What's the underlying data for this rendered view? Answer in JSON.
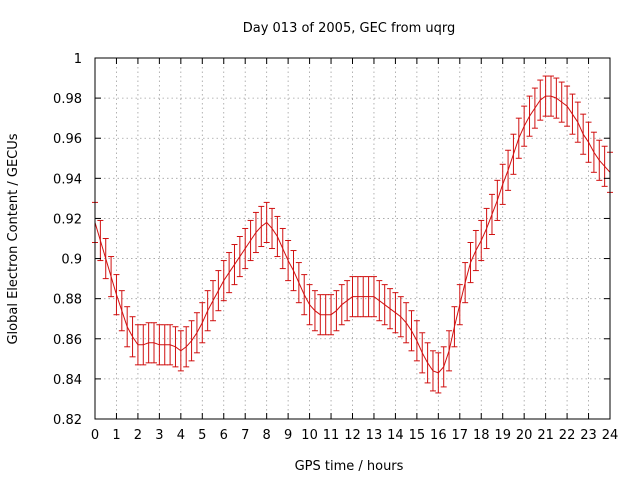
{
  "chart_data": {
    "type": "line",
    "title": "Day 013 of 2005, GEC from uqrg",
    "xlabel": "GPS time / hours",
    "ylabel": "Global Electron Content / GECUs",
    "xlim": [
      0,
      24
    ],
    "ylim": [
      0.82,
      1.0
    ],
    "grid": true,
    "x_ticks": [
      "0",
      "1",
      "2",
      "3",
      "4",
      "5",
      "6",
      "7",
      "8",
      "9",
      "10",
      "11",
      "12",
      "13",
      "14",
      "15",
      "16",
      "17",
      "18",
      "19",
      "20",
      "21",
      "22",
      "23",
      "24"
    ],
    "y_ticks": [
      "0.82",
      "0.84",
      "0.86",
      "0.88",
      "0.9",
      "0.92",
      "0.94",
      "0.96",
      "0.98",
      "1"
    ],
    "series": [
      {
        "color": "#d01010",
        "x": [
          0.0,
          0.25,
          0.5,
          0.75,
          1.0,
          1.25,
          1.5,
          1.75,
          2.0,
          2.25,
          2.5,
          2.75,
          3.0,
          3.25,
          3.5,
          3.75,
          4.0,
          4.25,
          4.5,
          4.75,
          5.0,
          5.25,
          5.5,
          5.75,
          6.0,
          6.25,
          6.5,
          6.75,
          7.0,
          7.25,
          7.5,
          7.75,
          8.0,
          8.25,
          8.5,
          8.75,
          9.0,
          9.25,
          9.5,
          9.75,
          10.0,
          10.25,
          10.5,
          10.75,
          11.0,
          11.25,
          11.5,
          11.75,
          12.0,
          12.25,
          12.5,
          12.75,
          13.0,
          13.25,
          13.5,
          13.75,
          14.0,
          14.25,
          14.5,
          14.75,
          15.0,
          15.25,
          15.5,
          15.75,
          16.0,
          16.25,
          16.5,
          16.75,
          17.0,
          17.25,
          17.5,
          17.75,
          18.0,
          18.25,
          18.5,
          18.75,
          19.0,
          19.25,
          19.5,
          19.75,
          20.0,
          20.25,
          20.5,
          20.75,
          21.0,
          21.25,
          21.5,
          21.75,
          22.0,
          22.25,
          22.5,
          22.75,
          23.0,
          23.25,
          23.5,
          23.75,
          24.0
        ],
        "values": [
          0.918,
          0.909,
          0.9,
          0.891,
          0.882,
          0.874,
          0.866,
          0.861,
          0.857,
          0.857,
          0.858,
          0.858,
          0.857,
          0.857,
          0.857,
          0.856,
          0.854,
          0.856,
          0.859,
          0.863,
          0.868,
          0.874,
          0.879,
          0.884,
          0.889,
          0.893,
          0.897,
          0.901,
          0.905,
          0.909,
          0.913,
          0.916,
          0.918,
          0.915,
          0.911,
          0.905,
          0.899,
          0.894,
          0.888,
          0.882,
          0.877,
          0.874,
          0.872,
          0.872,
          0.872,
          0.874,
          0.877,
          0.879,
          0.881,
          0.881,
          0.881,
          0.881,
          0.881,
          0.879,
          0.877,
          0.875,
          0.873,
          0.871,
          0.868,
          0.864,
          0.859,
          0.853,
          0.848,
          0.844,
          0.843,
          0.846,
          0.854,
          0.866,
          0.877,
          0.888,
          0.898,
          0.904,
          0.909,
          0.915,
          0.922,
          0.929,
          0.937,
          0.944,
          0.952,
          0.96,
          0.966,
          0.971,
          0.975,
          0.979,
          0.981,
          0.981,
          0.98,
          0.978,
          0.976,
          0.972,
          0.968,
          0.962,
          0.958,
          0.953,
          0.949,
          0.946,
          0.943
        ],
        "errors": [
          0.01,
          0.01,
          0.01,
          0.01,
          0.01,
          0.01,
          0.01,
          0.01,
          0.01,
          0.01,
          0.01,
          0.01,
          0.01,
          0.01,
          0.01,
          0.01,
          0.01,
          0.01,
          0.01,
          0.01,
          0.01,
          0.01,
          0.01,
          0.01,
          0.01,
          0.01,
          0.01,
          0.01,
          0.01,
          0.01,
          0.01,
          0.01,
          0.01,
          0.01,
          0.01,
          0.01,
          0.01,
          0.01,
          0.01,
          0.01,
          0.01,
          0.01,
          0.01,
          0.01,
          0.01,
          0.01,
          0.01,
          0.01,
          0.01,
          0.01,
          0.01,
          0.01,
          0.01,
          0.01,
          0.01,
          0.01,
          0.01,
          0.01,
          0.01,
          0.01,
          0.01,
          0.01,
          0.01,
          0.01,
          0.01,
          0.01,
          0.01,
          0.01,
          0.01,
          0.01,
          0.01,
          0.01,
          0.01,
          0.01,
          0.01,
          0.01,
          0.01,
          0.01,
          0.01,
          0.01,
          0.01,
          0.01,
          0.01,
          0.01,
          0.01,
          0.01,
          0.01,
          0.01,
          0.01,
          0.01,
          0.01,
          0.01,
          0.01,
          0.01,
          0.01,
          0.01,
          0.01
        ]
      }
    ]
  }
}
